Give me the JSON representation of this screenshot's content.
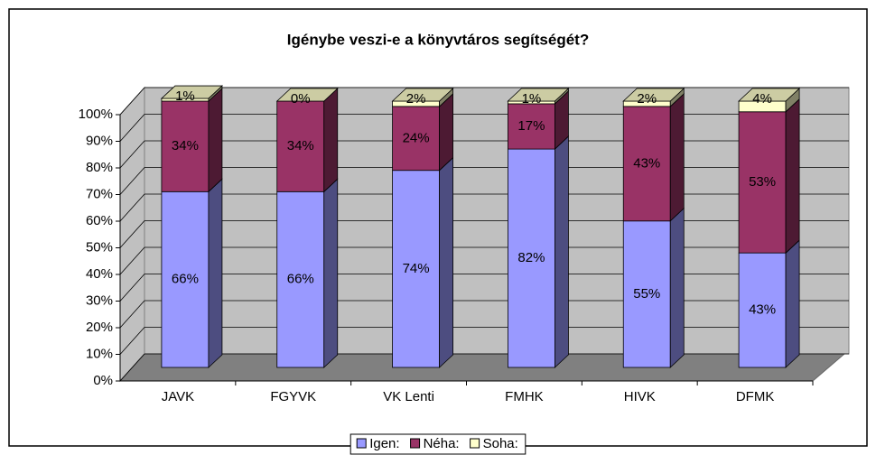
{
  "chart_data": {
    "type": "bar3d_stacked",
    "title": "Igénybe veszi-e a könyvtáros segítségét?",
    "categories": [
      "JAVK",
      "FGYVK",
      "VK Lenti",
      "FMHK",
      "HIVK",
      "DFMK"
    ],
    "series": [
      {
        "name": "Igen:",
        "color": "#9999ff",
        "values": [
          66,
          66,
          74,
          82,
          55,
          43
        ],
        "value_labels": [
          "66%",
          "66%",
          "74%",
          "82%",
          "55%",
          "43%"
        ]
      },
      {
        "name": "Néha:",
        "color": "#993366",
        "values": [
          34,
          34,
          24,
          17,
          43,
          53
        ],
        "value_labels": [
          "34%",
          "34%",
          "24%",
          "17%",
          "43%",
          "53%"
        ]
      },
      {
        "name": "Soha:",
        "color": "#ffffcc",
        "values": [
          1,
          0,
          2,
          1,
          2,
          4
        ],
        "value_labels": [
          "1%",
          "0%",
          "2%",
          "1%",
          "2%",
          "4%"
        ]
      }
    ],
    "ylim": [
      0,
      100
    ],
    "yticks": [
      {
        "value": 0,
        "label": "0%"
      },
      {
        "value": 10,
        "label": "10%"
      },
      {
        "value": 20,
        "label": "20%"
      },
      {
        "value": 30,
        "label": "30%"
      },
      {
        "value": 40,
        "label": "40%"
      },
      {
        "value": 50,
        "label": "50%"
      },
      {
        "value": 60,
        "label": "60%"
      },
      {
        "value": 70,
        "label": "70%"
      },
      {
        "value": 80,
        "label": "80%"
      },
      {
        "value": 90,
        "label": "90%"
      },
      {
        "value": 100,
        "label": "100%"
      }
    ],
    "grid": true,
    "legend": "bottom"
  }
}
